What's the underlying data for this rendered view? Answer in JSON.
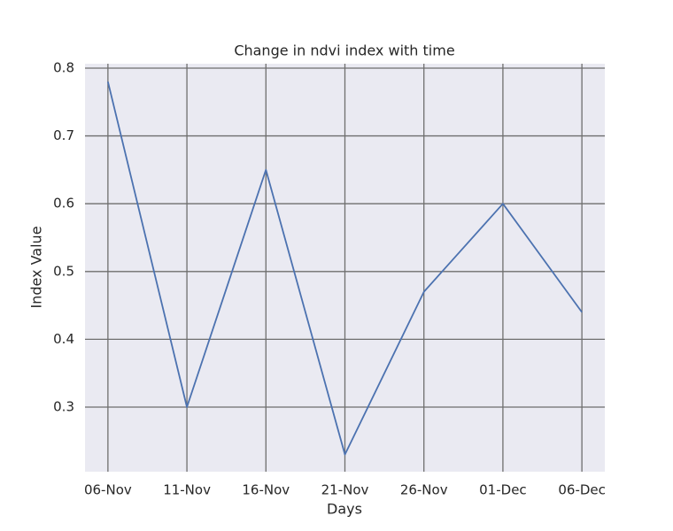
{
  "chart_data": {
    "type": "line",
    "title": "Change in ndvi index with time",
    "x_label": "Days",
    "y_label": "Index Value",
    "categories": [
      "06-Nov",
      "11-Nov",
      "16-Nov",
      "21-Nov",
      "26-Nov",
      "01-Dec",
      "06-Dec"
    ],
    "series": [
      {
        "name": "ndvi",
        "color": "#4c72b0",
        "values": [
          0.78,
          0.3,
          0.65,
          0.23,
          0.47,
          0.6,
          0.44
        ]
      }
    ],
    "ylim": [
      0.2047,
      0.8065
    ],
    "yticks": [
      0.3,
      0.4,
      0.5,
      0.6,
      0.7,
      0.8
    ],
    "grid": true
  }
}
